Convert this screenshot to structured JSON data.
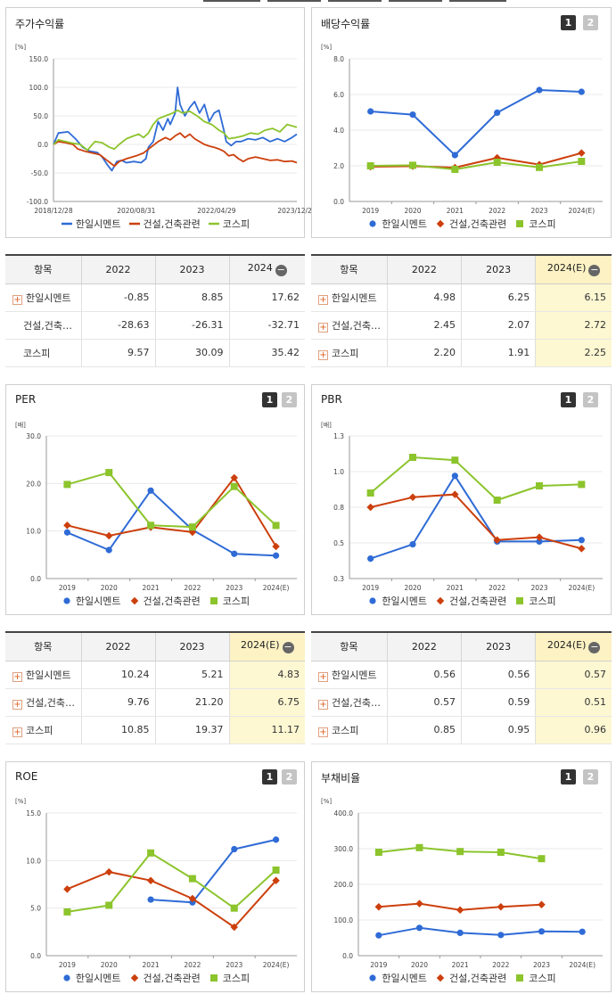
{
  "colors": {
    "blue": "#2f6bd6",
    "red": "#cc3f0c",
    "green": "#8cc42c"
  },
  "panels": {
    "stock": {
      "title": "주가수익률",
      "unit": "[%]",
      "legend": [
        "한일시멘트",
        "건설,건축관련",
        "코스피"
      ]
    },
    "dividend": {
      "title": "배당수익률",
      "btn1": "1",
      "btn2": "2",
      "unit": "[%]",
      "legend": [
        "한일시멘트",
        "건설,건축관련",
        "코스피"
      ]
    },
    "per": {
      "title": "PER",
      "btn1": "1",
      "btn2": "2",
      "unit": "[배]",
      "legend": [
        "한일시멘트",
        "건설,건축관련",
        "코스피"
      ]
    },
    "pbr": {
      "title": "PBR",
      "btn1": "1",
      "btn2": "2",
      "unit": "[배]",
      "legend": [
        "한일시멘트",
        "건설,건축관련",
        "코스피"
      ]
    },
    "roe": {
      "title": "ROE",
      "btn1": "1",
      "btn2": "2",
      "unit": "[%]",
      "legend": [
        "한일시멘트",
        "건설,건축관련",
        "코스피"
      ]
    },
    "debt": {
      "title": "부채비율",
      "btn1": "1",
      "btn2": "2",
      "unit": "[%]",
      "legend": [
        "한일시멘트",
        "건설,건축관련",
        "코스피"
      ]
    }
  },
  "tables": {
    "stock": {
      "header": [
        "항목",
        "2022",
        "2023",
        "2024"
      ],
      "rows": [
        {
          "name": "한일시멘트",
          "plus": true,
          "values": [
            "-0.85",
            "8.85",
            "17.62"
          ]
        },
        {
          "name": "건설,건축…",
          "plus": false,
          "values": [
            "-28.63",
            "-26.31",
            "-32.71"
          ]
        },
        {
          "name": "코스피",
          "plus": false,
          "values": [
            "9.57",
            "30.09",
            "35.42"
          ]
        }
      ]
    },
    "dividend": {
      "header": [
        "항목",
        "2022",
        "2023",
        "2024(E)"
      ],
      "rows": [
        {
          "name": "한일시멘트",
          "plus": true,
          "values": [
            "4.98",
            "6.25",
            "6.15"
          ]
        },
        {
          "name": "건설,건축…",
          "plus": true,
          "values": [
            "2.45",
            "2.07",
            "2.72"
          ]
        },
        {
          "name": "코스피",
          "plus": true,
          "values": [
            "2.20",
            "1.91",
            "2.25"
          ]
        }
      ]
    },
    "per": {
      "header": [
        "항목",
        "2022",
        "2023",
        "2024(E)"
      ],
      "rows": [
        {
          "name": "한일시멘트",
          "plus": true,
          "values": [
            "10.24",
            "5.21",
            "4.83"
          ]
        },
        {
          "name": "건설,건축…",
          "plus": true,
          "values": [
            "9.76",
            "21.20",
            "6.75"
          ]
        },
        {
          "name": "코스피",
          "plus": true,
          "values": [
            "10.85",
            "19.37",
            "11.17"
          ]
        }
      ]
    },
    "pbr": {
      "header": [
        "항목",
        "2022",
        "2023",
        "2024(E)"
      ],
      "rows": [
        {
          "name": "한일시멘트",
          "plus": true,
          "values": [
            "0.56",
            "0.56",
            "0.57"
          ]
        },
        {
          "name": "건설,건축…",
          "plus": true,
          "values": [
            "0.57",
            "0.59",
            "0.51"
          ]
        },
        {
          "name": "코스피",
          "plus": true,
          "values": [
            "0.85",
            "0.95",
            "0.96"
          ]
        }
      ]
    }
  },
  "chart_data": [
    {
      "id": "stock",
      "type": "line",
      "title": "주가수익률",
      "ylabel": "[%]",
      "ylim": [
        -100,
        150
      ],
      "yticks": [
        "150.0",
        "100.0",
        "50.0",
        "0.0",
        "-50.0",
        "-100.0"
      ],
      "xticks": [
        "2018/12/28",
        "2020/08/31",
        "2022/04/29",
        "2023/12/28"
      ],
      "x_range": [
        "2018-12-28",
        "2024-05-31"
      ],
      "series": [
        {
          "name": "한일시멘트",
          "color": "#2f6bd6",
          "values": [
            [
              0,
              0
            ],
            [
              0.02,
              20
            ],
            [
              0.06,
              22
            ],
            [
              0.09,
              10
            ],
            [
              0.12,
              -5
            ],
            [
              0.15,
              -12
            ],
            [
              0.18,
              -14
            ],
            [
              0.2,
              -22
            ],
            [
              0.22,
              -35
            ],
            [
              0.24,
              -46
            ],
            [
              0.26,
              -30
            ],
            [
              0.28,
              -28
            ],
            [
              0.3,
              -32
            ],
            [
              0.33,
              -30
            ],
            [
              0.36,
              -32
            ],
            [
              0.38,
              -25
            ],
            [
              0.39,
              -5
            ],
            [
              0.41,
              5
            ],
            [
              0.43,
              40
            ],
            [
              0.45,
              25
            ],
            [
              0.47,
              45
            ],
            [
              0.48,
              35
            ],
            [
              0.5,
              55
            ],
            [
              0.51,
              100
            ],
            [
              0.52,
              70
            ],
            [
              0.54,
              50
            ],
            [
              0.56,
              65
            ],
            [
              0.58,
              75
            ],
            [
              0.6,
              55
            ],
            [
              0.62,
              70
            ],
            [
              0.64,
              40
            ],
            [
              0.66,
              55
            ],
            [
              0.68,
              60
            ],
            [
              0.7,
              25
            ],
            [
              0.71,
              5
            ],
            [
              0.73,
              -2
            ],
            [
              0.75,
              5
            ],
            [
              0.77,
              5
            ],
            [
              0.8,
              10
            ],
            [
              0.83,
              8
            ],
            [
              0.86,
              12
            ],
            [
              0.89,
              5
            ],
            [
              0.92,
              10
            ],
            [
              0.95,
              5
            ],
            [
              0.98,
              12
            ],
            [
              1.0,
              18
            ]
          ]
        },
        {
          "name": "건설,건축관련",
          "color": "#cc3f0c",
          "values": [
            [
              0,
              0
            ],
            [
              0.02,
              5
            ],
            [
              0.05,
              3
            ],
            [
              0.08,
              0
            ],
            [
              0.1,
              -8
            ],
            [
              0.13,
              -12
            ],
            [
              0.16,
              -15
            ],
            [
              0.19,
              -18
            ],
            [
              0.22,
              -28
            ],
            [
              0.25,
              -38
            ],
            [
              0.27,
              -30
            ],
            [
              0.3,
              -25
            ],
            [
              0.34,
              -20
            ],
            [
              0.37,
              -15
            ],
            [
              0.4,
              -5
            ],
            [
              0.43,
              5
            ],
            [
              0.46,
              12
            ],
            [
              0.48,
              8
            ],
            [
              0.5,
              15
            ],
            [
              0.52,
              20
            ],
            [
              0.54,
              12
            ],
            [
              0.56,
              18
            ],
            [
              0.58,
              10
            ],
            [
              0.6,
              5
            ],
            [
              0.62,
              0
            ],
            [
              0.64,
              -3
            ],
            [
              0.66,
              -5
            ],
            [
              0.68,
              -8
            ],
            [
              0.7,
              -12
            ],
            [
              0.72,
              -20
            ],
            [
              0.74,
              -18
            ],
            [
              0.76,
              -25
            ],
            [
              0.78,
              -30
            ],
            [
              0.8,
              -25
            ],
            [
              0.83,
              -22
            ],
            [
              0.86,
              -25
            ],
            [
              0.89,
              -28
            ],
            [
              0.92,
              -27
            ],
            [
              0.95,
              -30
            ],
            [
              0.98,
              -29
            ],
            [
              1.0,
              -32
            ]
          ]
        },
        {
          "name": "코스피",
          "color": "#8cc42c",
          "values": [
            [
              0,
              0
            ],
            [
              0.02,
              8
            ],
            [
              0.05,
              5
            ],
            [
              0.08,
              2
            ],
            [
              0.11,
              0
            ],
            [
              0.14,
              -10
            ],
            [
              0.17,
              5
            ],
            [
              0.2,
              3
            ],
            [
              0.23,
              -5
            ],
            [
              0.25,
              -8
            ],
            [
              0.27,
              0
            ],
            [
              0.3,
              10
            ],
            [
              0.33,
              15
            ],
            [
              0.35,
              18
            ],
            [
              0.37,
              12
            ],
            [
              0.39,
              20
            ],
            [
              0.41,
              35
            ],
            [
              0.43,
              45
            ],
            [
              0.46,
              50
            ],
            [
              0.49,
              55
            ],
            [
              0.51,
              60
            ],
            [
              0.53,
              55
            ],
            [
              0.56,
              58
            ],
            [
              0.59,
              50
            ],
            [
              0.62,
              40
            ],
            [
              0.65,
              35
            ],
            [
              0.68,
              25
            ],
            [
              0.7,
              20
            ],
            [
              0.72,
              10
            ],
            [
              0.75,
              12
            ],
            [
              0.78,
              15
            ],
            [
              0.81,
              20
            ],
            [
              0.84,
              18
            ],
            [
              0.87,
              25
            ],
            [
              0.9,
              28
            ],
            [
              0.93,
              22
            ],
            [
              0.96,
              35
            ],
            [
              1.0,
              30
            ]
          ]
        }
      ]
    },
    {
      "id": "dividend",
      "type": "line",
      "title": "배당수익률",
      "ylabel": "[%]",
      "ylim": [
        0,
        8
      ],
      "yticks": [
        "8.0",
        "6.0",
        "4.0",
        "2.0",
        "0.0"
      ],
      "categories": [
        "2019",
        "2020",
        "2021",
        "2022",
        "2023",
        "2024(E)"
      ],
      "series": [
        {
          "name": "한일시멘트",
          "color": "#2f6bd6",
          "values": [
            5.05,
            4.87,
            2.6,
            4.98,
            6.25,
            6.15
          ]
        },
        {
          "name": "건설,건축관련",
          "color": "#cc3f0c",
          "values": [
            1.95,
            1.98,
            1.9,
            2.45,
            2.07,
            2.72
          ]
        },
        {
          "name": "코스피",
          "color": "#8cc42c",
          "values": [
            2.0,
            2.03,
            1.8,
            2.2,
            1.91,
            2.25
          ]
        }
      ]
    },
    {
      "id": "per",
      "type": "line",
      "title": "PER",
      "ylabel": "[배]",
      "ylim": [
        0,
        30
      ],
      "yticks": [
        "30.0",
        "20.0",
        "10.0",
        "0.0"
      ],
      "categories": [
        "2019",
        "2020",
        "2021",
        "2022",
        "2023",
        "2024(E)"
      ],
      "series": [
        {
          "name": "한일시멘트",
          "color": "#2f6bd6",
          "values": [
            9.7,
            6.0,
            18.5,
            10.24,
            5.21,
            4.83
          ]
        },
        {
          "name": "건설,건축관련",
          "color": "#cc3f0c",
          "values": [
            11.2,
            9.0,
            10.8,
            9.76,
            21.2,
            6.75
          ]
        },
        {
          "name": "코스피",
          "color": "#8cc42c",
          "values": [
            19.8,
            22.3,
            11.2,
            10.85,
            19.37,
            11.17
          ]
        }
      ]
    },
    {
      "id": "pbr",
      "type": "line",
      "title": "PBR",
      "ylabel": "[배]",
      "ylim": [
        0.3,
        1.3
      ],
      "yticks": [
        "1.3",
        "1.0",
        "0.8",
        "0.5",
        "0.3"
      ],
      "categories": [
        "2019",
        "2020",
        "2021",
        "2022",
        "2023",
        "2024(E)"
      ],
      "series": [
        {
          "name": "한일시멘트",
          "color": "#2f6bd6",
          "values": [
            0.44,
            0.54,
            1.02,
            0.56,
            0.56,
            0.57
          ]
        },
        {
          "name": "건설,건축관련",
          "color": "#cc3f0c",
          "values": [
            0.8,
            0.87,
            0.89,
            0.57,
            0.59,
            0.51
          ]
        },
        {
          "name": "코스피",
          "color": "#8cc42c",
          "values": [
            0.9,
            1.15,
            1.13,
            0.85,
            0.95,
            0.96
          ]
        }
      ]
    },
    {
      "id": "roe",
      "type": "line",
      "title": "ROE",
      "ylabel": "[%]",
      "ylim": [
        0,
        15
      ],
      "yticks": [
        "15.0",
        "10.0",
        "5.0",
        "0.0"
      ],
      "categories": [
        "2019",
        "2020",
        "2021",
        "2022",
        "2023",
        "2024(E)"
      ],
      "series": [
        {
          "name": "한일시멘트",
          "color": "#2f6bd6",
          "values": [
            null,
            null,
            5.9,
            5.6,
            11.2,
            12.2
          ]
        },
        {
          "name": "건설,건축관련",
          "color": "#cc3f0c",
          "values": [
            7.0,
            8.8,
            7.9,
            6.0,
            3.0,
            7.9
          ]
        },
        {
          "name": "코스피",
          "color": "#8cc42c",
          "values": [
            4.6,
            5.3,
            10.8,
            8.1,
            5.0,
            9.0
          ]
        }
      ]
    },
    {
      "id": "debt",
      "type": "line",
      "title": "부채비율",
      "ylabel": "[%]",
      "ylim": [
        0,
        400
      ],
      "yticks": [
        "400.0",
        "300.0",
        "200.0",
        "100.0",
        "0.0"
      ],
      "categories": [
        "2019",
        "2020",
        "2021",
        "2022",
        "2023",
        "2024(E)"
      ],
      "series": [
        {
          "name": "한일시멘트",
          "color": "#2f6bd6",
          "values": [
            57,
            78,
            64,
            58,
            68,
            67
          ]
        },
        {
          "name": "건설,건축관련",
          "color": "#cc3f0c",
          "values": [
            137,
            146,
            128,
            137,
            143,
            null
          ]
        },
        {
          "name": "코스피",
          "color": "#8cc42c",
          "values": [
            290,
            303,
            292,
            290,
            272,
            null
          ]
        }
      ]
    }
  ]
}
